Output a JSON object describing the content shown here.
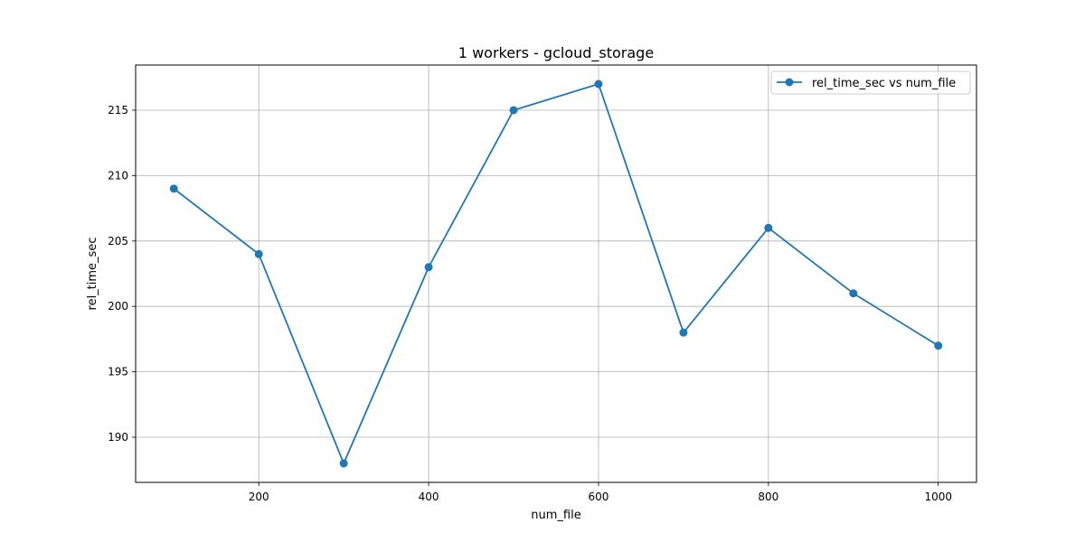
{
  "chart_data": {
    "type": "line",
    "title": "1 workers - gcloud_storage",
    "xlabel": "num_file",
    "ylabel": "rel_time_sec",
    "x": [
      100,
      200,
      300,
      400,
      500,
      600,
      700,
      800,
      900,
      1000
    ],
    "series": [
      {
        "name": "rel_time_sec vs num_file",
        "values": [
          209,
          204,
          188,
          203,
          215,
          217,
          198,
          206,
          201,
          197
        ],
        "color": "#1f77b4",
        "marker": "circle"
      }
    ],
    "xlim": [
      55,
      1045
    ],
    "ylim": [
      186.55,
      218.45
    ],
    "xticks": [
      200,
      400,
      600,
      800,
      1000
    ],
    "yticks": [
      190,
      195,
      200,
      205,
      210,
      215
    ],
    "grid": true,
    "legend_position": "top-right"
  }
}
